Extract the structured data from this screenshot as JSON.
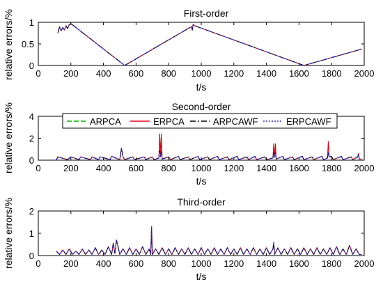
{
  "colors": {
    "ARPCA": "#00b400",
    "ERPCA": "#e3001b",
    "ARPCAWF": "#000000",
    "ERPCAWF": "#2a2ae8",
    "axes": "#000000"
  },
  "legend": {
    "placement": "inside-top of second subplot",
    "entries": [
      "ARPCA",
      "ERPCA",
      "ARPCAWF",
      "ERPCAWF"
    ]
  },
  "chart_data": [
    {
      "type": "line",
      "title": "First-order",
      "xlabel": "t/s",
      "ylabel": "relative errors/%",
      "xlim": [
        0,
        2000
      ],
      "ylim": [
        0,
        1
      ],
      "xticks": [
        "0",
        "200",
        "400",
        "600",
        "800",
        "1000",
        "1200",
        "1400",
        "1600",
        "1800",
        "2000"
      ],
      "yticks": [
        "0",
        "0.5",
        "1"
      ],
      "x": [
        120,
        130,
        140,
        150,
        160,
        170,
        180,
        190,
        200,
        530,
        940,
        945,
        950,
        960,
        1630,
        1985
      ],
      "series": [
        {
          "name": "ARPCA",
          "values": [
            0.75,
            0.9,
            0.8,
            0.88,
            0.82,
            0.92,
            0.85,
            0.95,
            0.97,
            0.0,
            0.9,
            0.82,
            0.95,
            0.92,
            0.0,
            0.38
          ]
        },
        {
          "name": "ERPCA",
          "values": [
            0.75,
            0.9,
            0.8,
            0.88,
            0.82,
            0.92,
            0.85,
            0.95,
            0.97,
            0.0,
            0.9,
            0.82,
            0.95,
            0.92,
            0.0,
            0.38
          ]
        },
        {
          "name": "ARPCAWF",
          "values": [
            0.75,
            0.9,
            0.8,
            0.88,
            0.82,
            0.92,
            0.85,
            0.95,
            0.97,
            0.0,
            0.9,
            0.82,
            0.95,
            0.92,
            0.0,
            0.38
          ]
        },
        {
          "name": "ERPCAWF",
          "values": [
            0.75,
            0.9,
            0.8,
            0.88,
            0.82,
            0.92,
            0.85,
            0.95,
            0.97,
            0.0,
            0.9,
            0.82,
            0.95,
            0.92,
            0.0,
            0.38
          ]
        }
      ]
    },
    {
      "type": "line",
      "title": "Second-order",
      "xlabel": "t/s",
      "ylabel": "relative errors/%",
      "xlim": [
        0,
        2000
      ],
      "ylim": [
        0,
        4
      ],
      "xticks": [
        "0",
        "200",
        "400",
        "600",
        "800",
        "1000",
        "1200",
        "1400",
        "1600",
        "1800",
        "2000"
      ],
      "yticks": [
        "0",
        "2",
        "4"
      ],
      "x": [
        110,
        120,
        180,
        200,
        250,
        260,
        320,
        330,
        370,
        380,
        440,
        450,
        500,
        510,
        520,
        530,
        580,
        590,
        650,
        660,
        700,
        710,
        740,
        745,
        750,
        755,
        760,
        800,
        810,
        860,
        870,
        920,
        930,
        980,
        990,
        1040,
        1050,
        1100,
        1110,
        1160,
        1170,
        1220,
        1230,
        1280,
        1290,
        1330,
        1340,
        1390,
        1400,
        1440,
        1445,
        1450,
        1455,
        1460,
        1500,
        1510,
        1560,
        1570,
        1620,
        1630,
        1680,
        1690,
        1740,
        1750,
        1775,
        1780,
        1785,
        1800,
        1810,
        1860,
        1870,
        1920,
        1930,
        1960,
        1965,
        1970,
        1985
      ],
      "series": [
        {
          "name": "ARPCA",
          "values": [
            0.0,
            0.3,
            0.05,
            0.3,
            0.05,
            0.3,
            0.05,
            0.3,
            0.05,
            0.3,
            0.05,
            0.35,
            0.05,
            1.1,
            0.3,
            0.05,
            0.3,
            0.05,
            0.3,
            0.05,
            0.3,
            0.05,
            0.2,
            2.3,
            0.3,
            2.3,
            0.1,
            0.3,
            0.05,
            0.35,
            0.05,
            0.3,
            0.05,
            0.35,
            0.05,
            0.3,
            0.05,
            0.35,
            0.05,
            0.3,
            0.05,
            0.35,
            0.05,
            0.3,
            0.05,
            0.35,
            0.05,
            0.3,
            0.05,
            0.2,
            1.4,
            0.3,
            1.4,
            0.1,
            0.35,
            0.05,
            0.3,
            0.05,
            0.35,
            0.05,
            0.3,
            0.05,
            0.35,
            0.05,
            0.2,
            1.6,
            0.3,
            0.35,
            0.05,
            0.35,
            0.05,
            0.3,
            0.05,
            0.3,
            0.5,
            0.1,
            0.1
          ]
        },
        {
          "name": "ERPCA",
          "values": [
            0.0,
            0.3,
            0.05,
            0.3,
            0.05,
            0.3,
            0.05,
            0.3,
            0.05,
            0.3,
            0.05,
            0.35,
            0.05,
            1.1,
            0.3,
            0.05,
            0.3,
            0.05,
            0.3,
            0.05,
            0.3,
            0.05,
            0.2,
            2.4,
            0.3,
            2.4,
            0.1,
            0.3,
            0.05,
            0.35,
            0.05,
            0.3,
            0.05,
            0.35,
            0.05,
            0.3,
            0.05,
            0.35,
            0.05,
            0.3,
            0.05,
            0.35,
            0.05,
            0.3,
            0.05,
            0.35,
            0.05,
            0.3,
            0.05,
            0.2,
            1.5,
            0.3,
            1.5,
            0.1,
            0.35,
            0.05,
            0.3,
            0.05,
            0.35,
            0.05,
            0.3,
            0.05,
            0.35,
            0.05,
            0.2,
            1.7,
            0.3,
            0.35,
            0.05,
            0.35,
            0.05,
            0.3,
            0.05,
            0.3,
            0.6,
            0.1,
            0.1
          ]
        },
        {
          "name": "ARPCAWF",
          "values": [
            0.0,
            0.3,
            0.05,
            0.3,
            0.05,
            0.3,
            0.05,
            0.3,
            0.05,
            0.3,
            0.05,
            0.35,
            0.05,
            1.1,
            0.3,
            0.05,
            0.3,
            0.05,
            0.3,
            0.05,
            0.3,
            0.05,
            0.2,
            0.9,
            0.3,
            0.8,
            0.1,
            0.3,
            0.05,
            0.35,
            0.05,
            0.3,
            0.05,
            0.35,
            0.05,
            0.3,
            0.05,
            0.35,
            0.05,
            0.3,
            0.05,
            0.35,
            0.05,
            0.3,
            0.05,
            0.35,
            0.05,
            0.3,
            0.05,
            0.2,
            0.8,
            0.3,
            0.7,
            0.1,
            0.35,
            0.05,
            0.3,
            0.05,
            0.35,
            0.05,
            0.3,
            0.05,
            0.35,
            0.05,
            0.2,
            0.7,
            0.3,
            0.35,
            0.05,
            0.35,
            0.05,
            0.3,
            0.05,
            0.3,
            0.5,
            0.1,
            0.1
          ]
        },
        {
          "name": "ERPCAWF",
          "values": [
            0.0,
            0.3,
            0.05,
            0.3,
            0.05,
            0.3,
            0.05,
            0.3,
            0.05,
            0.3,
            0.05,
            0.35,
            0.05,
            1.1,
            0.3,
            0.05,
            0.3,
            0.05,
            0.3,
            0.05,
            0.3,
            0.05,
            0.2,
            0.9,
            0.3,
            0.8,
            0.1,
            0.3,
            0.05,
            0.35,
            0.05,
            0.3,
            0.05,
            0.35,
            0.05,
            0.3,
            0.05,
            0.35,
            0.05,
            0.3,
            0.05,
            0.35,
            0.05,
            0.3,
            0.05,
            0.35,
            0.05,
            0.3,
            0.05,
            0.2,
            0.8,
            0.3,
            0.7,
            0.1,
            0.35,
            0.05,
            0.3,
            0.05,
            0.35,
            0.05,
            0.3,
            0.05,
            0.35,
            0.05,
            0.2,
            0.7,
            0.3,
            0.35,
            0.05,
            0.35,
            0.05,
            0.3,
            0.05,
            0.3,
            0.5,
            0.1,
            0.1
          ]
        }
      ]
    },
    {
      "type": "line",
      "title": "Third-order",
      "xlabel": "t/s",
      "ylabel": "relative errors/%",
      "xlim": [
        0,
        2000
      ],
      "ylim": [
        0,
        2
      ],
      "xticks": [
        "0",
        "200",
        "400",
        "600",
        "800",
        "1000",
        "1200",
        "1400",
        "1600",
        "1800",
        "2000"
      ],
      "yticks": [
        "0",
        "1",
        "2"
      ],
      "x": [
        110,
        130,
        150,
        170,
        190,
        210,
        230,
        250,
        270,
        290,
        310,
        330,
        350,
        370,
        390,
        410,
        430,
        450,
        460,
        470,
        480,
        500,
        520,
        540,
        560,
        580,
        600,
        620,
        640,
        660,
        680,
        690,
        695,
        700,
        720,
        740,
        760,
        780,
        800,
        820,
        840,
        860,
        880,
        900,
        920,
        940,
        960,
        980,
        1000,
        1020,
        1040,
        1060,
        1080,
        1100,
        1120,
        1140,
        1160,
        1180,
        1200,
        1220,
        1240,
        1260,
        1280,
        1300,
        1320,
        1340,
        1360,
        1380,
        1400,
        1420,
        1440,
        1445,
        1450,
        1470,
        1490,
        1510,
        1530,
        1550,
        1570,
        1590,
        1610,
        1630,
        1650,
        1670,
        1690,
        1710,
        1730,
        1750,
        1770,
        1790,
        1810,
        1830,
        1850,
        1870,
        1890,
        1910,
        1930,
        1950,
        1970,
        1985
      ],
      "series": [
        {
          "name": "ARPCA",
          "values": [
            0.2,
            0.05,
            0.25,
            0.05,
            0.3,
            0.05,
            0.2,
            0.05,
            0.3,
            0.05,
            0.25,
            0.05,
            0.35,
            0.05,
            0.25,
            0.05,
            0.4,
            0.05,
            0.55,
            0.1,
            0.7,
            0.05,
            0.3,
            0.05,
            0.35,
            0.05,
            0.3,
            0.05,
            0.4,
            0.05,
            0.3,
            0.05,
            1.3,
            0.05,
            0.3,
            0.05,
            0.35,
            0.05,
            0.3,
            0.05,
            0.35,
            0.05,
            0.3,
            0.05,
            0.35,
            0.05,
            0.3,
            0.05,
            0.35,
            0.05,
            0.3,
            0.05,
            0.35,
            0.05,
            0.3,
            0.05,
            0.35,
            0.05,
            0.3,
            0.05,
            0.35,
            0.05,
            0.3,
            0.05,
            0.35,
            0.05,
            0.3,
            0.05,
            0.35,
            0.05,
            0.3,
            0.6,
            0.05,
            0.35,
            0.05,
            0.3,
            0.05,
            0.35,
            0.05,
            0.3,
            0.05,
            0.35,
            0.05,
            0.3,
            0.05,
            0.35,
            0.05,
            0.3,
            0.05,
            0.35,
            0.05,
            0.4,
            0.05,
            0.3,
            0.05,
            0.45,
            0.05,
            0.3,
            0.05,
            0.05
          ]
        },
        {
          "name": "ERPCA",
          "values": [
            0.2,
            0.05,
            0.25,
            0.05,
            0.3,
            0.05,
            0.2,
            0.05,
            0.3,
            0.05,
            0.25,
            0.05,
            0.35,
            0.05,
            0.25,
            0.05,
            0.4,
            0.05,
            0.55,
            0.1,
            0.7,
            0.05,
            0.3,
            0.05,
            0.35,
            0.05,
            0.3,
            0.05,
            0.4,
            0.05,
            0.3,
            0.05,
            1.3,
            0.05,
            0.3,
            0.05,
            0.35,
            0.05,
            0.3,
            0.05,
            0.35,
            0.05,
            0.3,
            0.05,
            0.35,
            0.05,
            0.3,
            0.05,
            0.35,
            0.05,
            0.3,
            0.05,
            0.35,
            0.05,
            0.3,
            0.05,
            0.35,
            0.05,
            0.3,
            0.05,
            0.35,
            0.05,
            0.3,
            0.05,
            0.35,
            0.05,
            0.3,
            0.05,
            0.35,
            0.05,
            0.3,
            0.6,
            0.05,
            0.35,
            0.05,
            0.3,
            0.05,
            0.35,
            0.05,
            0.3,
            0.05,
            0.35,
            0.05,
            0.3,
            0.05,
            0.35,
            0.05,
            0.3,
            0.05,
            0.35,
            0.05,
            0.4,
            0.05,
            0.3,
            0.05,
            0.45,
            0.05,
            0.3,
            0.05,
            0.05
          ]
        },
        {
          "name": "ARPCAWF",
          "values": [
            0.2,
            0.05,
            0.25,
            0.05,
            0.3,
            0.05,
            0.2,
            0.05,
            0.3,
            0.05,
            0.25,
            0.05,
            0.35,
            0.05,
            0.25,
            0.05,
            0.4,
            0.05,
            0.55,
            0.1,
            0.7,
            0.05,
            0.3,
            0.05,
            0.35,
            0.05,
            0.3,
            0.05,
            0.4,
            0.05,
            0.3,
            0.05,
            1.3,
            0.05,
            0.3,
            0.05,
            0.35,
            0.05,
            0.3,
            0.05,
            0.35,
            0.05,
            0.3,
            0.05,
            0.35,
            0.05,
            0.3,
            0.05,
            0.35,
            0.05,
            0.3,
            0.05,
            0.35,
            0.05,
            0.3,
            0.05,
            0.35,
            0.05,
            0.3,
            0.05,
            0.35,
            0.05,
            0.3,
            0.05,
            0.35,
            0.05,
            0.3,
            0.05,
            0.35,
            0.05,
            0.3,
            0.6,
            0.05,
            0.35,
            0.05,
            0.3,
            0.05,
            0.35,
            0.05,
            0.3,
            0.05,
            0.35,
            0.05,
            0.3,
            0.05,
            0.35,
            0.05,
            0.3,
            0.05,
            0.35,
            0.05,
            0.4,
            0.05,
            0.3,
            0.05,
            0.45,
            0.05,
            0.3,
            0.05,
            0.05
          ]
        },
        {
          "name": "ERPCAWF",
          "values": [
            0.2,
            0.05,
            0.25,
            0.05,
            0.3,
            0.05,
            0.2,
            0.05,
            0.3,
            0.05,
            0.25,
            0.05,
            0.35,
            0.05,
            0.25,
            0.05,
            0.4,
            0.05,
            0.55,
            0.1,
            0.7,
            0.05,
            0.3,
            0.05,
            0.35,
            0.05,
            0.3,
            0.05,
            0.4,
            0.05,
            0.3,
            0.05,
            1.3,
            0.05,
            0.3,
            0.05,
            0.35,
            0.05,
            0.3,
            0.05,
            0.35,
            0.05,
            0.3,
            0.05,
            0.35,
            0.05,
            0.3,
            0.05,
            0.35,
            0.05,
            0.3,
            0.05,
            0.35,
            0.05,
            0.3,
            0.05,
            0.35,
            0.05,
            0.3,
            0.05,
            0.35,
            0.05,
            0.3,
            0.05,
            0.35,
            0.05,
            0.3,
            0.05,
            0.35,
            0.05,
            0.3,
            0.6,
            0.05,
            0.35,
            0.05,
            0.3,
            0.05,
            0.35,
            0.05,
            0.3,
            0.05,
            0.35,
            0.05,
            0.3,
            0.05,
            0.35,
            0.05,
            0.3,
            0.05,
            0.35,
            0.05,
            0.4,
            0.05,
            0.3,
            0.05,
            0.45,
            0.05,
            0.3,
            0.05,
            0.05
          ]
        }
      ]
    }
  ]
}
